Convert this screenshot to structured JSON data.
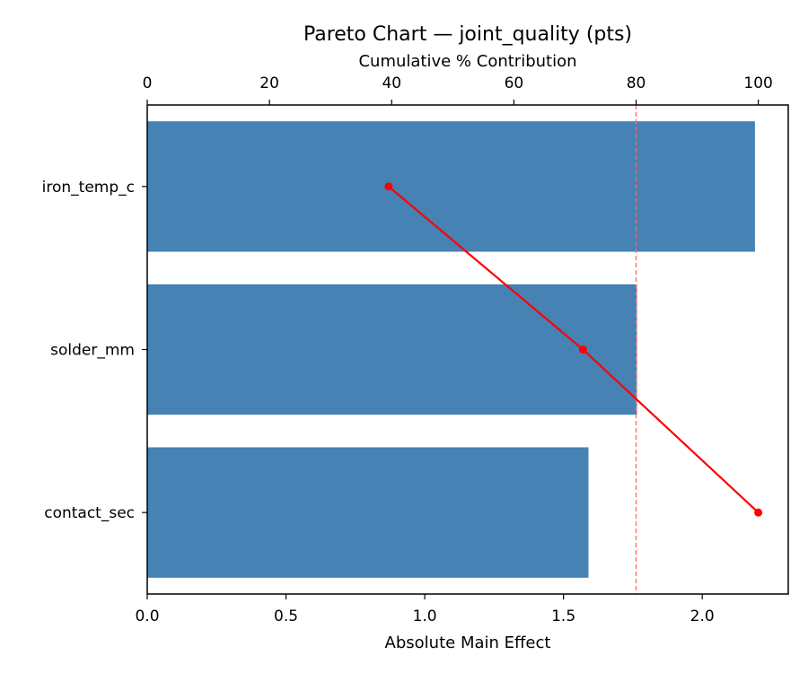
{
  "chart_data": {
    "type": "bar",
    "orientation": "horizontal",
    "title": "Pareto Chart — joint_quality (pts)",
    "xlabel": "Absolute Main Effect",
    "ylabel": "",
    "top_xlabel": "Cumulative % Contribution",
    "categories": [
      "iron_temp_c",
      "solder_mm",
      "contact_sec"
    ],
    "values": [
      2.19,
      1.765,
      1.59
    ],
    "xlim": [
      0,
      2.31
    ],
    "xticks": [
      "0.0",
      "0.5",
      "1.0",
      "1.5",
      "2.0"
    ],
    "xtick_values": [
      0,
      0.5,
      1.0,
      1.5,
      2.0
    ],
    "top_xlim": [
      0,
      104.9
    ],
    "top_xticks": [
      "0",
      "20",
      "40",
      "60",
      "80",
      "100"
    ],
    "top_xtick_values": [
      0,
      20,
      40,
      60,
      80,
      100
    ],
    "cumulative_series": {
      "name": "Cumulative %",
      "values": [
        39.5,
        71.3,
        100.0
      ],
      "color": "#ff0000"
    },
    "threshold_line": {
      "value": 80,
      "axis": "top",
      "style": "dashed",
      "color": "#ff6666"
    },
    "bar_color": "#4682b4",
    "grid": false,
    "legend": null
  }
}
